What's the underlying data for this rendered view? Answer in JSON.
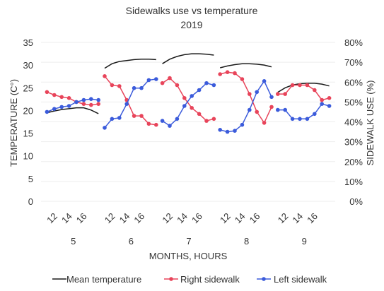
{
  "chart_data": {
    "type": "line",
    "title": "Sidewalks use vs temperature",
    "subtitle": "2019",
    "xlabel": "MONTHS, HOURS",
    "ylabel_left": "TEMPERATURE (C°)",
    "ylabel_right": "SIDEWALK USE (%)",
    "y_left": {
      "min": 0,
      "max": 35,
      "ticks": [
        "0",
        "5",
        "10",
        "15",
        "20",
        "25",
        "30",
        "35"
      ]
    },
    "y_right": {
      "min": 0,
      "max": 80,
      "ticks": [
        "0%",
        "10%",
        "20%",
        "30%",
        "40%",
        "50%",
        "60%",
        "70%",
        "80%"
      ]
    },
    "grid": true,
    "legend_position": "bottom",
    "groups": [
      {
        "month": "5",
        "hours": [
          11,
          12,
          13,
          14,
          15,
          16,
          17,
          18
        ],
        "hour_labels": [
          "12",
          "14",
          "16"
        ]
      },
      {
        "month": "6",
        "hours": [
          11,
          12,
          13,
          14,
          15,
          16,
          17,
          18
        ],
        "hour_labels": [
          "12",
          "14",
          "16"
        ]
      },
      {
        "month": "7",
        "hours": [
          11,
          12,
          13,
          14,
          15,
          16,
          17,
          18
        ],
        "hour_labels": [
          "12",
          "14",
          "16"
        ]
      },
      {
        "month": "8",
        "hours": [
          11,
          12,
          13,
          14,
          15,
          16,
          17,
          18
        ],
        "hour_labels": [
          "12",
          "14",
          "16"
        ]
      },
      {
        "month": "9",
        "hours": [
          11,
          12,
          13,
          14,
          15,
          16,
          17,
          18
        ],
        "hour_labels": [
          "12",
          "14",
          "16"
        ]
      }
    ],
    "series": [
      {
        "name": "Mean temperature",
        "axis": "left",
        "color": "#1a1a1a",
        "markers": false,
        "values": [
          [
            19.5,
            19.9,
            20.2,
            20.4,
            20.6,
            20.6,
            20.1,
            19.3
          ],
          [
            29.3,
            30.3,
            30.8,
            31.0,
            31.2,
            31.3,
            31.3,
            31.2
          ],
          [
            30.3,
            31.3,
            31.9,
            32.3,
            32.5,
            32.5,
            32.4,
            32.2
          ],
          [
            29.4,
            29.8,
            30.1,
            30.3,
            30.3,
            30.2,
            30.0,
            29.6
          ],
          [
            24.0,
            25.0,
            25.6,
            25.9,
            26.0,
            26.0,
            25.8,
            25.4
          ]
        ]
      },
      {
        "name": "Right sidewalk",
        "axis": "right",
        "color": "#e8445a",
        "markers": true,
        "values": [
          [
            55,
            53.5,
            52.5,
            52,
            50,
            49,
            48.5,
            49
          ],
          [
            63,
            58.5,
            58,
            51,
            43,
            43,
            39,
            38.5
          ],
          [
            59.5,
            62,
            58.5,
            52,
            47,
            44,
            40.5,
            41.5
          ],
          [
            64,
            65,
            64.5,
            61.5,
            54,
            45,
            39.5,
            47.5
          ],
          [
            54,
            54,
            58.5,
            58.5,
            58.5,
            56,
            51,
            52
          ]
        ]
      },
      {
        "name": "Left sidewalk",
        "axis": "right",
        "color": "#3b5bdb",
        "markers": true,
        "values": [
          [
            45,
            46.5,
            47.5,
            48,
            50,
            51,
            51.5,
            51
          ],
          [
            37,
            41.5,
            42,
            49,
            57,
            57,
            61,
            61.5
          ],
          [
            40.5,
            38,
            41.5,
            48,
            53,
            56,
            59.5,
            58.5
          ],
          [
            36,
            35,
            35.5,
            38.5,
            46,
            55,
            60.5,
            52.5
          ],
          [
            46,
            46,
            41.5,
            41.5,
            41.5,
            44,
            49,
            48
          ]
        ]
      }
    ]
  }
}
